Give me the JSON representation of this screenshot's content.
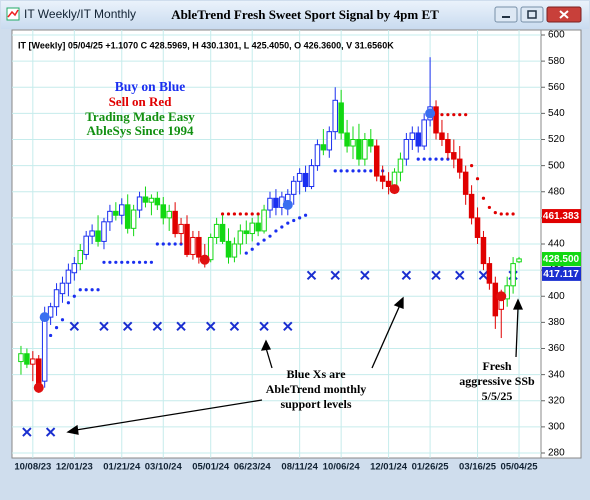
{
  "window_title": "IT Weekly/IT Monthly",
  "chart_data": {
    "type": "candlestick",
    "title": "AbleTrend Fresh Sweet Sport Signal by 4pm ET",
    "info_line": "IT [Weekly] 05/04/25 +1.1070 C 428.5969, H 430.1301, L 425.4050, O 426.3600, V 31.6560K",
    "categories": [
      null,
      null,
      "10/08/23",
      null,
      null,
      null,
      null,
      null,
      null,
      "12/01/23",
      null,
      null,
      null,
      null,
      null,
      null,
      null,
      "01/21/24",
      null,
      null,
      null,
      null,
      null,
      null,
      "03/10/24",
      null,
      null,
      null,
      null,
      null,
      null,
      null,
      "05/01/24",
      null,
      null,
      null,
      null,
      null,
      null,
      "06/23/24",
      null,
      null,
      null,
      null,
      null,
      null,
      null,
      "08/11/24",
      null,
      null,
      null,
      null,
      null,
      null,
      "10/06/24",
      null,
      null,
      null,
      null,
      null,
      null,
      null,
      "12/01/24",
      null,
      null,
      null,
      null,
      null,
      null,
      "01/26/25",
      null,
      null,
      null,
      null,
      null,
      null,
      null,
      "03/16/25",
      null,
      null,
      null,
      null,
      null,
      null,
      "05/04/25"
    ],
    "open": [
      350,
      356,
      348,
      352,
      335,
      384,
      392,
      402,
      410,
      418,
      425,
      432,
      446,
      450,
      442,
      457,
      465,
      462,
      470,
      452,
      466,
      476,
      472,
      475,
      470,
      460,
      465,
      448,
      455,
      432,
      445,
      430,
      428,
      445,
      455,
      442,
      430,
      440,
      450,
      448,
      456,
      450,
      466,
      475,
      468,
      470,
      478,
      488,
      494,
      484,
      500,
      516,
      512,
      526,
      548,
      525,
      515,
      520,
      505,
      520,
      515,
      492,
      488,
      484,
      495,
      505,
      520,
      525,
      515,
      535,
      545,
      525,
      520,
      510,
      505,
      495,
      478,
      460,
      445,
      425,
      410,
      390,
      398,
      408,
      426.36
    ],
    "high": [
      362,
      360,
      358,
      355,
      392,
      395,
      410,
      415,
      425,
      430,
      440,
      450,
      455,
      462,
      460,
      470,
      472,
      475,
      478,
      470,
      480,
      484,
      478,
      480,
      476,
      470,
      472,
      460,
      462,
      450,
      450,
      440,
      448,
      460,
      462,
      452,
      445,
      455,
      458,
      460,
      462,
      470,
      480,
      482,
      480,
      482,
      492,
      498,
      500,
      505,
      520,
      528,
      530,
      560,
      558,
      535,
      530,
      532,
      525,
      528,
      520,
      500,
      495,
      498,
      510,
      525,
      530,
      530,
      540,
      583,
      550,
      535,
      525,
      520,
      515,
      500,
      485,
      468,
      450,
      430,
      415,
      405,
      415,
      430,
      430.1301
    ],
    "low": [
      340,
      345,
      335,
      326,
      330,
      378,
      385,
      395,
      400,
      412,
      420,
      428,
      440,
      438,
      436,
      450,
      458,
      455,
      448,
      446,
      460,
      468,
      462,
      466,
      455,
      450,
      445,
      440,
      430,
      428,
      425,
      422,
      426,
      440,
      440,
      425,
      426,
      432,
      440,
      442,
      446,
      448,
      460,
      462,
      462,
      462,
      470,
      478,
      480,
      482,
      496,
      508,
      506,
      520,
      520,
      510,
      505,
      500,
      500,
      510,
      488,
      482,
      478,
      480,
      488,
      500,
      512,
      510,
      512,
      530,
      520,
      515,
      505,
      498,
      490,
      470,
      455,
      440,
      420,
      405,
      375,
      368,
      392,
      402,
      425.405
    ],
    "close": [
      356,
      348,
      352,
      332,
      384,
      392,
      405,
      410,
      420,
      425,
      435,
      446,
      450,
      442,
      457,
      465,
      462,
      470,
      452,
      466,
      476,
      472,
      475,
      470,
      460,
      465,
      448,
      455,
      432,
      445,
      430,
      428,
      445,
      455,
      442,
      430,
      440,
      450,
      448,
      456,
      450,
      466,
      475,
      468,
      476,
      478,
      488,
      494,
      484,
      500,
      516,
      512,
      526,
      550,
      525,
      515,
      520,
      505,
      520,
      515,
      492,
      488,
      484,
      495,
      505,
      520,
      525,
      515,
      535,
      545,
      525,
      520,
      510,
      505,
      495,
      478,
      460,
      445,
      425,
      410,
      385,
      398,
      408,
      425,
      428.5969
    ],
    "candle_colors": [
      "g",
      "g",
      "r",
      "r",
      "b",
      "b",
      "b",
      "b",
      "b",
      "b",
      "g",
      "b",
      "b",
      "g",
      "b",
      "b",
      "g",
      "b",
      "g",
      "g",
      "b",
      "g",
      "g",
      "g",
      "g",
      "g",
      "r",
      "r",
      "r",
      "r",
      "r",
      "r",
      "g",
      "g",
      "g",
      "g",
      "g",
      "g",
      "g",
      "g",
      "g",
      "g",
      "b",
      "b",
      "b",
      "b",
      "b",
      "b",
      "b",
      "b",
      "b",
      "g",
      "b",
      "b",
      "g",
      "g",
      "g",
      "g",
      "g",
      "g",
      "r",
      "r",
      "r",
      "g",
      "g",
      "b",
      "b",
      "b",
      "b",
      "b",
      "r",
      "r",
      "r",
      "r",
      "r",
      "r",
      "r",
      "r",
      "r",
      "r",
      "r",
      "r",
      "g",
      "g",
      "g"
    ],
    "palette": {
      "b": "#1a2ff0",
      "r": "#e00000",
      "g": "#12d812"
    },
    "support_dots": {
      "color": "#1a2ff0",
      "values": [
        null,
        null,
        null,
        null,
        null,
        370,
        376,
        382,
        395,
        400,
        405,
        405,
        405,
        405,
        426,
        426,
        426,
        426,
        426,
        426,
        426,
        426,
        426,
        440,
        440,
        440,
        440,
        440,
        null,
        null,
        null,
        null,
        null,
        null,
        null,
        null,
        null,
        null,
        433,
        436,
        440,
        443,
        446,
        450,
        453,
        456,
        458,
        460,
        462,
        null,
        null,
        null,
        null,
        496,
        496,
        496,
        496,
        496,
        496,
        496,
        496,
        496,
        null,
        null,
        null,
        null,
        null,
        505,
        505,
        505,
        505,
        505,
        505,
        null,
        null,
        null,
        null,
        null,
        null,
        null,
        null,
        null,
        null,
        null,
        null
      ]
    },
    "resistance_dots": {
      "color": "#e00000",
      "values": [
        null,
        null,
        null,
        null,
        null,
        null,
        null,
        null,
        null,
        null,
        null,
        null,
        null,
        null,
        null,
        null,
        null,
        null,
        null,
        null,
        null,
        null,
        null,
        null,
        null,
        null,
        null,
        null,
        null,
        null,
        null,
        null,
        null,
        null,
        463,
        463,
        463,
        463,
        463,
        463,
        463,
        463,
        null,
        null,
        null,
        null,
        null,
        null,
        null,
        null,
        null,
        null,
        null,
        null,
        null,
        null,
        null,
        null,
        null,
        null,
        null,
        null,
        null,
        null,
        null,
        null,
        null,
        null,
        null,
        null,
        null,
        539,
        539,
        539,
        539,
        539,
        500,
        490,
        475,
        468,
        464,
        463,
        463,
        463,
        null
      ]
    },
    "monthly_support": {
      "color": "#1a2fd0",
      "values": [
        null,
        296,
        null,
        null,
        null,
        296,
        null,
        null,
        null,
        377,
        null,
        null,
        null,
        null,
        377,
        null,
        null,
        null,
        377,
        null,
        null,
        null,
        null,
        377,
        null,
        null,
        null,
        377,
        null,
        null,
        null,
        null,
        377,
        null,
        null,
        null,
        377,
        null,
        null,
        null,
        null,
        377,
        null,
        null,
        null,
        377,
        null,
        null,
        null,
        416,
        null,
        null,
        null,
        416,
        null,
        null,
        null,
        null,
        416,
        null,
        null,
        null,
        null,
        null,
        null,
        416,
        null,
        null,
        null,
        null,
        416,
        null,
        null,
        null,
        416,
        null,
        null,
        null,
        416,
        null,
        null,
        null,
        null,
        416,
        null
      ]
    },
    "buy_signals": {
      "color": "#3a6ff0",
      "values": [
        null,
        null,
        null,
        null,
        384,
        null,
        null,
        null,
        null,
        null,
        null,
        null,
        null,
        null,
        null,
        null,
        null,
        null,
        null,
        null,
        null,
        null,
        null,
        null,
        null,
        null,
        null,
        null,
        null,
        null,
        null,
        null,
        null,
        null,
        null,
        null,
        null,
        null,
        null,
        null,
        null,
        null,
        null,
        null,
        null,
        470,
        null,
        null,
        null,
        null,
        null,
        null,
        null,
        null,
        null,
        null,
        null,
        null,
        null,
        null,
        null,
        null,
        null,
        null,
        null,
        null,
        null,
        null,
        null,
        540,
        null,
        null,
        null,
        null,
        null,
        null,
        null,
        null,
        null,
        null,
        null,
        null,
        null,
        null,
        null
      ]
    },
    "sell_signals": {
      "color": "#e01010",
      "values": [
        null,
        null,
        null,
        330,
        null,
        null,
        null,
        null,
        null,
        null,
        null,
        null,
        null,
        null,
        null,
        null,
        null,
        null,
        null,
        null,
        null,
        null,
        null,
        null,
        null,
        null,
        null,
        null,
        null,
        null,
        null,
        428,
        null,
        null,
        null,
        null,
        null,
        null,
        null,
        null,
        null,
        null,
        null,
        null,
        null,
        null,
        null,
        null,
        null,
        null,
        null,
        null,
        null,
        null,
        null,
        null,
        null,
        null,
        null,
        null,
        null,
        null,
        null,
        482,
        null,
        null,
        null,
        null,
        null,
        null,
        null,
        null,
        null,
        null,
        null,
        null,
        null,
        null,
        null,
        null,
        null,
        400,
        null,
        null,
        null
      ]
    },
    "price_tags": {
      "values": [
        461.383,
        {
          "value": 428.5,
          "label": "428.500"
        },
        417.117
      ],
      "colors": [
        "#e00000",
        "#12d812",
        "#1a2fd0"
      ]
    },
    "ylim": [
      280,
      600
    ],
    "yticks": [
      280,
      300,
      320,
      340,
      360,
      380,
      400,
      420,
      440,
      460,
      480,
      500,
      520,
      540,
      560,
      580,
      600
    ],
    "grid": true,
    "annotations": [
      {
        "lines": [
          "Buy on Blue"
        ],
        "color": "#1a2ff0"
      },
      {
        "lines": [
          "Sell on Red"
        ],
        "color": "#e00000"
      },
      {
        "lines": [
          "Trading Made Easy"
        ],
        "color": "#129012"
      },
      {
        "lines": [
          "AbleSys Since 1994"
        ],
        "color": "#129012"
      },
      {
        "lines": [
          "Blue Xs are",
          "AbleTrend monthly",
          "support levels"
        ],
        "color": "#000000"
      },
      {
        "lines": [
          "Fresh",
          "aggressive SSb",
          "5/5/25"
        ],
        "color": "#000000"
      }
    ]
  }
}
